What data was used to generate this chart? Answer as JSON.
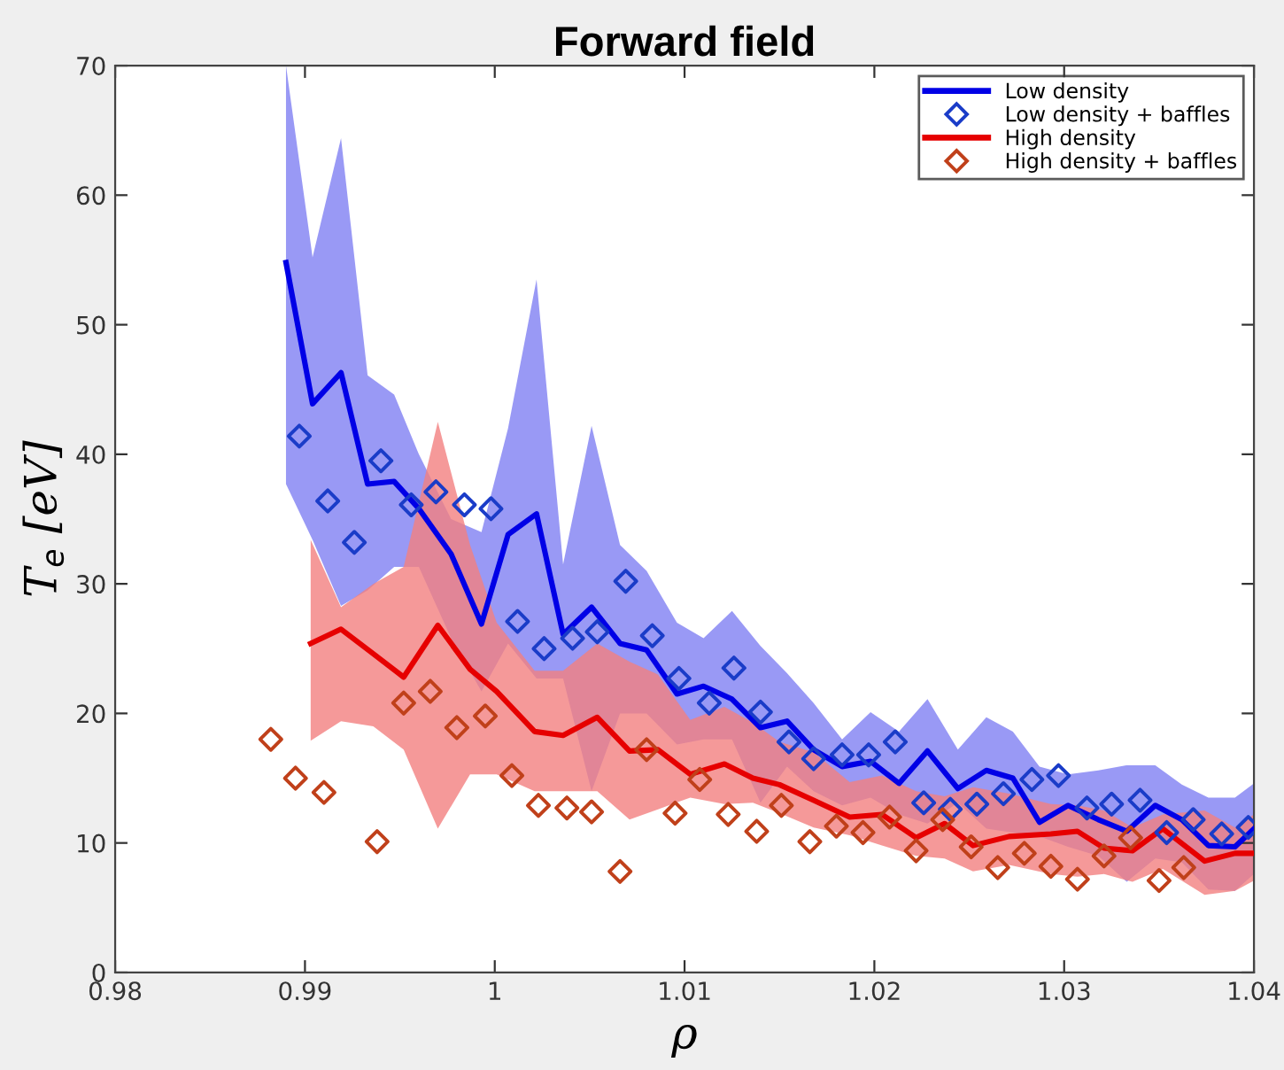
{
  "chart_data": {
    "type": "line",
    "title": "Forward field",
    "xlabel": "ρ",
    "ylabel": "T$_{e}$ [eV]",
    "xlim": [
      0.98,
      1.04
    ],
    "xticks": [
      0.98,
      0.99,
      {
        "value": 1,
        "label": "1"
      },
      1.01,
      1.02,
      1.03,
      1.04
    ],
    "ylim": [
      0,
      70
    ],
    "yticks": [
      0,
      10,
      20,
      30,
      40,
      50,
      60,
      70
    ],
    "grid": false,
    "legend": "top right",
    "series": [
      {
        "name": "Low density",
        "color": "#0000e6",
        "marker": "none",
        "line_style": "solid",
        "x": [
          0.989,
          0.9904,
          0.9919,
          0.9933,
          0.9947,
          0.996,
          0.9977,
          0.9993,
          1.0007,
          1.0022,
          1.0036,
          1.0051,
          1.0066,
          1.008,
          1.0096,
          1.011,
          1.0125,
          1.014,
          1.0154,
          1.0168,
          1.0183,
          1.0198,
          1.0213,
          1.0228,
          1.0244,
          1.0259,
          1.0273,
          1.0287,
          1.0302,
          1.0318,
          1.0333,
          1.0348,
          1.0362,
          1.0376,
          1.039,
          1.04
        ],
        "values": [
          54.8,
          43.9,
          46.3,
          37.7,
          37.9,
          35.8,
          32.3,
          26.9,
          33.8,
          35.4,
          26.1,
          28.2,
          25.4,
          24.9,
          21.5,
          22.1,
          21.1,
          18.9,
          19.4,
          17.2,
          15.9,
          16.3,
          14.6,
          17.1,
          14.2,
          15.6,
          15.0,
          11.6,
          12.9,
          11.8,
          10.9,
          12.9,
          11.8,
          9.8,
          9.7,
          11.1
        ],
        "upper": [
          70,
          55.2,
          64.4,
          46.1,
          44.6,
          40,
          35,
          34,
          42,
          53.5,
          31.5,
          42.2,
          33,
          31,
          27,
          25.8,
          27.9,
          25.2,
          23.1,
          20.8,
          18.0,
          20.1,
          18.6,
          21.1,
          17.2,
          19.7,
          18.6,
          15.9,
          15.3,
          15.6,
          16.0,
          16.0,
          14.5,
          13.5,
          13.5,
          14.6
        ],
        "lower": [
          37.7,
          33.4,
          28.3,
          29.5,
          31.3,
          31.3,
          25.8,
          21.7,
          25.4,
          22.7,
          22.7,
          14.0,
          20,
          20,
          17.6,
          18.0,
          18.0,
          13.1,
          15.9,
          14.0,
          12.9,
          13.5,
          12.2,
          11.5,
          13.1,
          11.1,
          10.8,
          10.5,
          9.7,
          9.0,
          7.0,
          8.8,
          8.5,
          6.4,
          6.3,
          7.6
        ]
      },
      {
        "name": "Low density + baffles",
        "type": "scatter",
        "color": "#1a3cc8",
        "marker": "diamond",
        "x": [
          0.9897,
          0.9912,
          0.9926,
          0.994,
          0.9956,
          0.9969,
          0.9984,
          0.9998,
          1.0012,
          1.0026,
          1.0041,
          1.0054,
          1.0069,
          1.0083,
          1.0097,
          1.0113,
          1.0126,
          1.014,
          1.0155,
          1.0168,
          1.0183,
          1.0197,
          1.0211,
          1.0226,
          1.024,
          1.0254,
          1.0268,
          1.0283,
          1.0297,
          1.0312,
          1.0325,
          1.034,
          1.0354,
          1.0368,
          1.0383,
          1.0397
        ],
        "values": [
          41.4,
          36.4,
          33.2,
          39.5,
          36.1,
          37.1,
          36.1,
          35.8,
          27.1,
          25.0,
          25.8,
          26.3,
          30.2,
          26.0,
          22.7,
          20.8,
          23.5,
          20.1,
          17.8,
          16.5,
          16.8,
          16.8,
          17.8,
          13.1,
          12.6,
          13.0,
          13.8,
          14.9,
          15.2,
          12.7,
          13.0,
          13.3,
          10.8,
          11.8,
          10.7,
          11.2
        ]
      },
      {
        "name": "High density",
        "color": "#e60000",
        "marker": "none",
        "line_style": "solid",
        "x": [
          0.9903,
          0.9919,
          0.9936,
          0.9952,
          0.997,
          0.9987,
          1.0001,
          1.0021,
          1.0036,
          1.0054,
          1.0071,
          1.0086,
          1.0103,
          1.0121,
          1.0136,
          1.015,
          1.0168,
          1.0187,
          1.0204,
          1.0222,
          1.0237,
          1.0252,
          1.0271,
          1.0293,
          1.0307,
          1.0321,
          1.0336,
          1.0352,
          1.0374,
          1.039,
          1.04
        ],
        "values": [
          25.4,
          26.5,
          24.6,
          22.8,
          26.8,
          23.4,
          21.7,
          18.6,
          18.3,
          19.7,
          17.1,
          17.2,
          15.3,
          16.1,
          15.0,
          14.5,
          13.3,
          12.0,
          12.2,
          10.4,
          11.5,
          9.8,
          10.5,
          10.7,
          10.9,
          9.6,
          9.4,
          11.1,
          8.6,
          9.2,
          9.2
        ],
        "upper": [
          33.4,
          28.2,
          30,
          31.3,
          42.5,
          33,
          27,
          23.3,
          23.3,
          25.4,
          24,
          23,
          19.5,
          20.5,
          19.3,
          17.8,
          17.0,
          14.7,
          15.2,
          14.0,
          13.6,
          14.3,
          13.8,
          13.0,
          12.9,
          12.5,
          11.2,
          12.2,
          12.5,
          11.2,
          12.2
        ],
        "lower": [
          17.9,
          19.4,
          19,
          17.2,
          11.1,
          15.3,
          15.3,
          14.0,
          14.0,
          14.0,
          11.8,
          12.6,
          13.5,
          13.0,
          13.1,
          12.3,
          11.2,
          10.6,
          9.8,
          9.0,
          8.8,
          7.8,
          8.3,
          7.6,
          7.4,
          7.6,
          7.0,
          8.0,
          6.0,
          6.3,
          7.1
        ]
      },
      {
        "name": "High density + baffles",
        "type": "scatter",
        "color": "#c0401a",
        "marker": "diamond",
        "x": [
          0.9882,
          0.9895,
          0.991,
          0.9938,
          0.9952,
          0.9966,
          0.998,
          0.9995,
          1.0009,
          1.0023,
          1.0038,
          1.0051,
          1.0066,
          1.008,
          1.0095,
          1.0108,
          1.0123,
          1.0138,
          1.0151,
          1.0166,
          1.018,
          1.0194,
          1.0208,
          1.0222,
          1.0236,
          1.0251,
          1.0265,
          1.0279,
          1.0293,
          1.0307,
          1.0321,
          1.0335,
          1.035,
          1.0363
        ],
        "values": [
          18.0,
          15.0,
          13.9,
          10.1,
          20.8,
          21.7,
          18.9,
          19.8,
          15.2,
          12.9,
          12.7,
          12.4,
          7.8,
          17.2,
          12.3,
          14.9,
          12.2,
          10.9,
          12.9,
          10.1,
          11.3,
          10.8,
          12.0,
          9.4,
          11.8,
          9.7,
          8.1,
          9.2,
          8.2,
          7.2,
          9.0,
          10.4,
          7.1,
          8.1
        ]
      }
    ]
  }
}
